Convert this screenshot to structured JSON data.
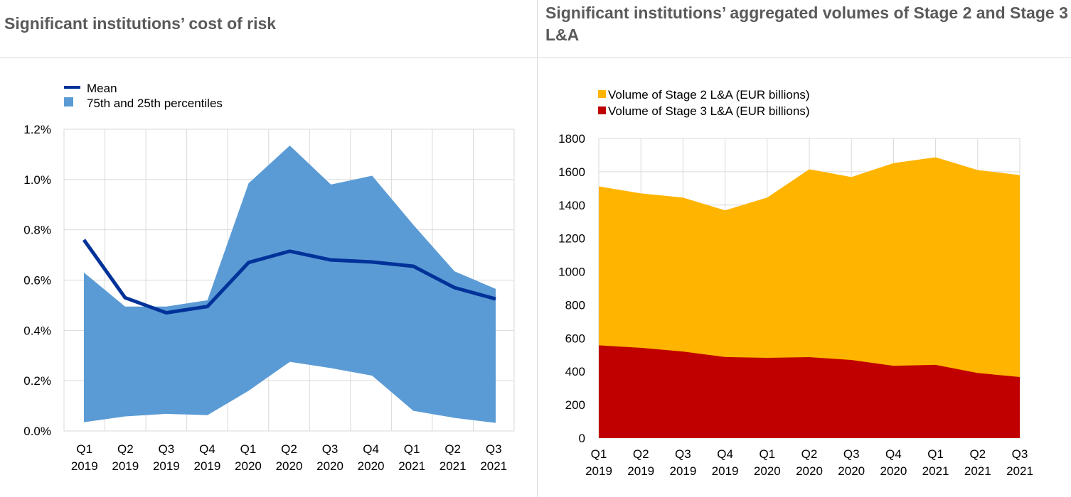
{
  "left_title": "Significant institutions’ cost of risk",
  "right_title": "Significant institutions’ aggregated volumes of Stage 2 and Stage 3 L&A",
  "colors": {
    "mean": "#003299",
    "band": "#5b9bd5",
    "stage2": "#ffb400",
    "stage3": "#c00000",
    "grid": "#d9d9d9",
    "title": "#5a5a5a"
  },
  "chart_data": [
    {
      "type": "line",
      "categories": [
        "Q1 2019",
        "Q2 2019",
        "Q3 2019",
        "Q4 2019",
        "Q1 2020",
        "Q2 2020",
        "Q3 2020",
        "Q4 2020",
        "Q1 2021",
        "Q2 2021",
        "Q3 2021"
      ],
      "ylim": [
        0,
        1.2
      ],
      "yticks": [
        "0.0%",
        "0.2%",
        "0.4%",
        "0.6%",
        "0.8%",
        "1.0%",
        "1.2%"
      ],
      "grid": true,
      "legend_position": "top-left",
      "series": [
        {
          "name": "Mean",
          "type": "line",
          "values": [
            0.76,
            0.53,
            0.47,
            0.495,
            0.67,
            0.715,
            0.68,
            0.672,
            0.655,
            0.57,
            0.525
          ]
        },
        {
          "name": "75th and 25th percentiles",
          "type": "band",
          "upper": [
            0.63,
            0.495,
            0.495,
            0.52,
            0.985,
            1.135,
            0.98,
            1.015,
            0.82,
            0.635,
            0.565
          ],
          "lower": [
            0.035,
            0.058,
            0.068,
            0.063,
            0.16,
            0.275,
            0.25,
            0.22,
            0.08,
            0.052,
            0.032
          ]
        }
      ]
    },
    {
      "type": "area",
      "categories": [
        "Q1 2019",
        "Q2 2019",
        "Q3 2019",
        "Q4 2019",
        "Q1 2020",
        "Q2 2020",
        "Q3 2020",
        "Q4 2020",
        "Q1 2021",
        "Q2 2021",
        "Q3 2021"
      ],
      "ylim": [
        0,
        1800
      ],
      "yticks": [
        "0",
        "200",
        "400",
        "600",
        "800",
        "1000",
        "1200",
        "1400",
        "1600",
        "1800"
      ],
      "grid": true,
      "legend_position": "top-left",
      "stacked": false,
      "series": [
        {
          "name": "Volume of Stage 2 L&A (EUR billions)",
          "values": [
            1512,
            1470,
            1445,
            1368,
            1445,
            1615,
            1568,
            1652,
            1687,
            1610,
            1580
          ]
        },
        {
          "name": "Volume of Stage 3 L&A (EUR billions)",
          "values": [
            557,
            542,
            520,
            487,
            482,
            486,
            469,
            434,
            440,
            391,
            367
          ]
        }
      ]
    }
  ]
}
